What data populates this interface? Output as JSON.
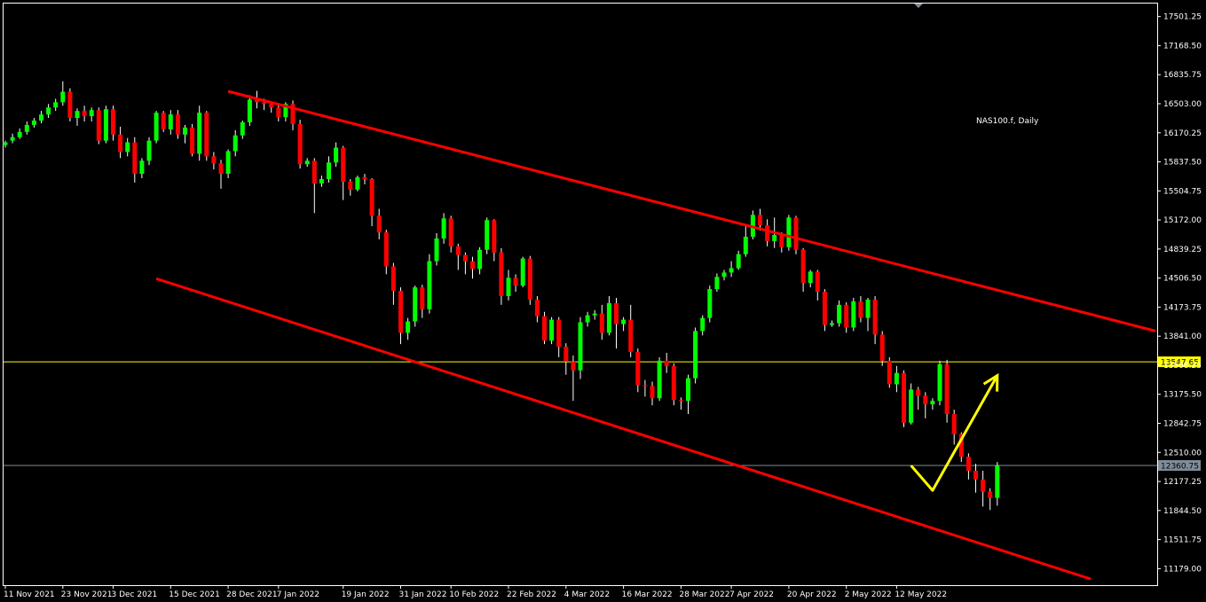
{
  "chart_data": {
    "type": "candlestick",
    "title": "NAS100.f, Daily",
    "symbol": "NAS100.f",
    "timeframe": "Daily",
    "ylim": [
      10990,
      17650
    ],
    "y_ticks": [
      "17501.25",
      "17168.50",
      "16835.75",
      "16503.00",
      "16170.25",
      "15837.50",
      "15504.75",
      "15172.00",
      "14839.25",
      "14506.50",
      "14173.75",
      "13841.00",
      "13508.25",
      "13175.50",
      "12842.75",
      "12510.00",
      "12177.25",
      "11844.50",
      "11511.75",
      "11179.00"
    ],
    "x_ticks": [
      "11 Nov 2021",
      "23 Nov 2021",
      "3 Dec 2021",
      "15 Dec 2021",
      "28 Dec 2021",
      "7 Jan 2022",
      "19 Jan 2022",
      "31 Jan 2022",
      "10 Feb 2022",
      "22 Feb 2022",
      "4 Mar 2022",
      "16 Mar 2022",
      "28 Mar 2022",
      "7 Apr 2022",
      "20 Apr 2022",
      "2 May 2022",
      "12 May 2022"
    ],
    "x_tick_bar_index": [
      0,
      8,
      15,
      23,
      31,
      38,
      47,
      55,
      62,
      70,
      78,
      86,
      94,
      101,
      109,
      117,
      124
    ],
    "price_lines": [
      {
        "value": 13547.65,
        "label": "13547.65",
        "color": "#ffff00",
        "label_bg": "#ffff00",
        "label_fg": "#000000"
      },
      {
        "value": 12360.75,
        "label": "12360.75",
        "color": "#7f8c99",
        "label_bg": "#7f8c99",
        "label_fg": "#000000"
      }
    ],
    "trendlines": [
      {
        "from": {
          "bar": 31,
          "price": 16645
        },
        "to": {
          "bar": 160,
          "price": 13900
        },
        "color": "#ff0000"
      },
      {
        "from": {
          "bar": 21,
          "price": 14500
        },
        "to": {
          "bar": 151,
          "price": 11060
        },
        "color": "#ff0000"
      }
    ],
    "arrow": {
      "points": [
        {
          "bar": 126,
          "price": 12360
        },
        {
          "bar": 129,
          "price": 12075
        },
        {
          "bar": 138,
          "price": 13390
        }
      ],
      "color": "#ffff00"
    },
    "up_color": "#00ff00",
    "down_color": "#ff0000",
    "wick_color": "#ffffff",
    "ohlc": [
      [
        16030,
        16060,
        16000,
        16080
      ],
      [
        16080,
        16120,
        16050,
        16160
      ],
      [
        16120,
        16180,
        16100,
        16220
      ],
      [
        16180,
        16260,
        16150,
        16300
      ],
      [
        16260,
        16310,
        16230,
        16340
      ],
      [
        16310,
        16380,
        16280,
        16420
      ],
      [
        16380,
        16460,
        16340,
        16500
      ],
      [
        16460,
        16520,
        16420,
        16560
      ],
      [
        16520,
        16640,
        16480,
        16760
      ],
      [
        16640,
        16340,
        16300,
        16680
      ],
      [
        16340,
        16420,
        16250,
        16450
      ],
      [
        16420,
        16360,
        16300,
        16480
      ],
      [
        16360,
        16430,
        16300,
        16460
      ],
      [
        16430,
        16080,
        16040,
        16460
      ],
      [
        16080,
        16440,
        16050,
        16480
      ],
      [
        16440,
        16150,
        16080,
        16480
      ],
      [
        16150,
        15950,
        15880,
        16240
      ],
      [
        15950,
        16060,
        15900,
        16110
      ],
      [
        16060,
        15700,
        15600,
        16120
      ],
      [
        15700,
        15850,
        15650,
        15880
      ],
      [
        15850,
        16080,
        15800,
        16120
      ],
      [
        16080,
        16400,
        16050,
        16420
      ],
      [
        16400,
        16210,
        16180,
        16420
      ],
      [
        16210,
        16380,
        16150,
        16430
      ],
      [
        16380,
        16150,
        16100,
        16430
      ],
      [
        16150,
        16230,
        16050,
        16260
      ],
      [
        16230,
        15930,
        15900,
        16270
      ],
      [
        15930,
        16400,
        15850,
        16480
      ],
      [
        16400,
        15900,
        15850,
        16420
      ],
      [
        15900,
        15820,
        15750,
        15950
      ],
      [
        15820,
        15700,
        15530,
        15860
      ],
      [
        15700,
        15960,
        15650,
        15980
      ],
      [
        15960,
        16140,
        15900,
        16200
      ],
      [
        16140,
        16290,
        16100,
        16310
      ],
      [
        16290,
        16550,
        16250,
        16600
      ],
      [
        16550,
        16520,
        16450,
        16650
      ],
      [
        16520,
        16500,
        16430,
        16560
      ],
      [
        16500,
        16460,
        16400,
        16530
      ],
      [
        16460,
        16350,
        16300,
        16500
      ],
      [
        16350,
        16500,
        16300,
        16520
      ],
      [
        16500,
        16270,
        16200,
        16540
      ],
      [
        16270,
        15810,
        15760,
        16320
      ],
      [
        15810,
        15850,
        15780,
        15880
      ],
      [
        15850,
        15590,
        15250,
        15880
      ],
      [
        15590,
        15640,
        15550,
        15680
      ],
      [
        15640,
        15830,
        15600,
        15900
      ],
      [
        15830,
        16000,
        15780,
        16060
      ],
      [
        16000,
        15610,
        15400,
        16020
      ],
      [
        15610,
        15520,
        15450,
        15640
      ],
      [
        15520,
        15660,
        15500,
        15680
      ],
      [
        15660,
        15640,
        15580,
        15700
      ],
      [
        15640,
        15220,
        15100,
        15650
      ],
      [
        15220,
        15030,
        14950,
        15300
      ],
      [
        15030,
        14640,
        14550,
        15060
      ],
      [
        14640,
        14360,
        14200,
        14680
      ],
      [
        14360,
        13880,
        13750,
        14400
      ],
      [
        13880,
        14010,
        13800,
        14050
      ],
      [
        14010,
        14400,
        13950,
        14420
      ],
      [
        14400,
        14150,
        14050,
        14430
      ],
      [
        14150,
        14700,
        14100,
        14780
      ],
      [
        14700,
        14960,
        14650,
        15020
      ],
      [
        14960,
        15190,
        14900,
        15250
      ],
      [
        15190,
        14870,
        14800,
        15220
      ],
      [
        14870,
        14770,
        14600,
        14900
      ],
      [
        14770,
        14700,
        14550,
        14800
      ],
      [
        14700,
        14610,
        14500,
        14750
      ],
      [
        14610,
        14830,
        14550,
        14860
      ],
      [
        14830,
        15170,
        14780,
        15200
      ],
      [
        15170,
        14800,
        14700,
        15180
      ],
      [
        14800,
        14300,
        14200,
        14850
      ],
      [
        14300,
        14510,
        14250,
        14600
      ],
      [
        14510,
        14420,
        14350,
        14550
      ],
      [
        14420,
        14730,
        14400,
        14750
      ],
      [
        14730,
        14260,
        14200,
        14760
      ],
      [
        14260,
        14070,
        14000,
        14300
      ],
      [
        14070,
        13790,
        13750,
        14120
      ],
      [
        13790,
        14030,
        13750,
        14060
      ],
      [
        14030,
        13720,
        13600,
        14060
      ],
      [
        13720,
        13550,
        13400,
        13760
      ],
      [
        13550,
        13450,
        13100,
        13620
      ],
      [
        13450,
        14000,
        13350,
        14060
      ],
      [
        14000,
        14080,
        13950,
        14120
      ],
      [
        14080,
        14100,
        14030,
        14140
      ],
      [
        14100,
        13880,
        13800,
        14200
      ],
      [
        13880,
        14220,
        13850,
        14300
      ],
      [
        14220,
        13980,
        13700,
        14280
      ],
      [
        13980,
        14030,
        13900,
        14060
      ],
      [
        14030,
        13660,
        13600,
        14200
      ],
      [
        13660,
        13280,
        13200,
        13700
      ],
      [
        13280,
        13270,
        13150,
        13340
      ],
      [
        13270,
        13130,
        13050,
        13320
      ],
      [
        13130,
        13560,
        13100,
        13600
      ],
      [
        13560,
        13500,
        13420,
        13650
      ],
      [
        13500,
        13110,
        13050,
        13530
      ],
      [
        13110,
        13100,
        13000,
        13140
      ],
      [
        13100,
        13360,
        12950,
        13400
      ],
      [
        13360,
        13900,
        13300,
        13940
      ],
      [
        13900,
        14050,
        13850,
        14080
      ],
      [
        14050,
        14380,
        14000,
        14420
      ],
      [
        14380,
        14520,
        14350,
        14560
      ],
      [
        14520,
        14570,
        14480,
        14600
      ],
      [
        14570,
        14620,
        14520,
        14700
      ],
      [
        14620,
        14780,
        14600,
        14820
      ],
      [
        14780,
        14980,
        14750,
        15100
      ],
      [
        14980,
        15230,
        14950,
        15280
      ],
      [
        15230,
        15110,
        15050,
        15300
      ],
      [
        15110,
        14930,
        14870,
        15180
      ],
      [
        14930,
        15000,
        14850,
        15200
      ],
      [
        15000,
        14860,
        14800,
        15030
      ],
      [
        14860,
        15200,
        14820,
        15230
      ],
      [
        15200,
        14830,
        14780,
        15220
      ],
      [
        14830,
        14450,
        14350,
        14850
      ],
      [
        14450,
        14580,
        14400,
        14600
      ],
      [
        14580,
        14350,
        14250,
        14600
      ],
      [
        14350,
        13970,
        13900,
        14380
      ],
      [
        13970,
        13990,
        13950,
        14020
      ],
      [
        13990,
        14200,
        13950,
        14250
      ],
      [
        14200,
        13940,
        13880,
        14230
      ],
      [
        13940,
        14240,
        13900,
        14280
      ],
      [
        14240,
        14050,
        14000,
        14300
      ],
      [
        14050,
        14260,
        13900,
        14280
      ],
      [
        14260,
        13860,
        13750,
        14300
      ],
      [
        13860,
        13560,
        13500,
        13900
      ],
      [
        13560,
        13290,
        13250,
        13600
      ],
      [
        13290,
        13420,
        13200,
        13500
      ],
      [
        13420,
        12850,
        12800,
        13450
      ],
      [
        12850,
        13230,
        12830,
        13300
      ],
      [
        13230,
        13160,
        13000,
        13260
      ],
      [
        13160,
        13060,
        12900,
        13200
      ],
      [
        13060,
        13100,
        13000,
        13130
      ],
      [
        13100,
        13520,
        13050,
        13560
      ],
      [
        13520,
        12950,
        12850,
        13570
      ],
      [
        12950,
        12720,
        12600,
        13000
      ],
      [
        12720,
        12460,
        12400,
        12740
      ],
      [
        12460,
        12300,
        12200,
        12500
      ],
      [
        12300,
        12200,
        12050,
        12380
      ],
      [
        12200,
        12060,
        11890,
        12300
      ],
      [
        12060,
        11990,
        11850,
        12100
      ],
      [
        11990,
        12360,
        11900,
        12400
      ]
    ]
  }
}
